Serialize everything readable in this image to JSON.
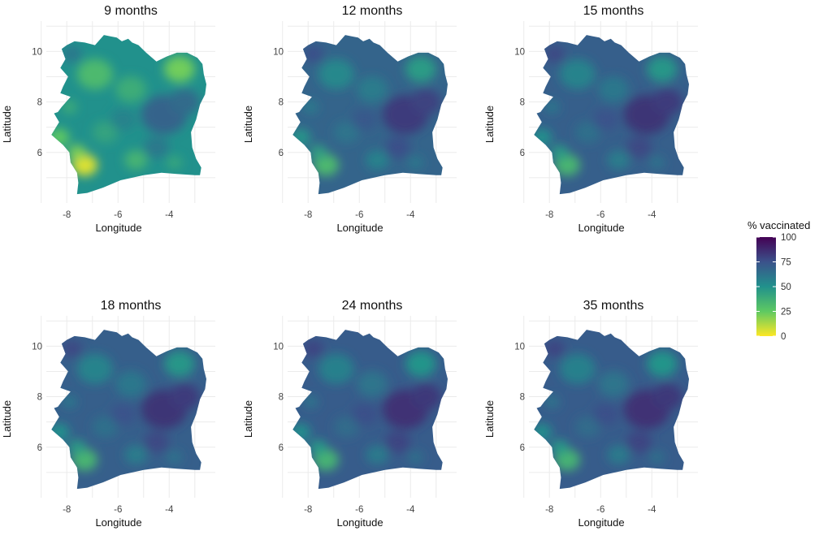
{
  "chart_data": {
    "type": "heatmap",
    "description_kind": "small-multiple choropleth maps",
    "xlabel": "Longitude",
    "ylabel": "Latitude",
    "xlim": [
      -8.8,
      -2.2
    ],
    "ylim": [
      4.0,
      11.2
    ],
    "x_ticks": [
      -8,
      -6,
      -4
    ],
    "y_ticks": [
      6,
      8,
      10
    ],
    "grid": true,
    "colormap": "viridis (reversed)",
    "legend": {
      "title": "% vaccinated",
      "placement": "right",
      "range": [
        0,
        100
      ],
      "ticks": [
        100,
        75,
        50,
        25,
        0
      ],
      "colors": [
        "#fde725",
        "#5ec962",
        "#21918c",
        "#3b528b",
        "#440154"
      ]
    },
    "panels": [
      {
        "title": "9 months",
        "typical_coverage": 50
      },
      {
        "title": "12 months",
        "typical_coverage": 68
      },
      {
        "title": "15 months",
        "typical_coverage": 70
      },
      {
        "title": "18 months",
        "typical_coverage": 70
      },
      {
        "title": "24 months",
        "typical_coverage": 71
      },
      {
        "title": "35 months",
        "typical_coverage": 71
      }
    ]
  }
}
